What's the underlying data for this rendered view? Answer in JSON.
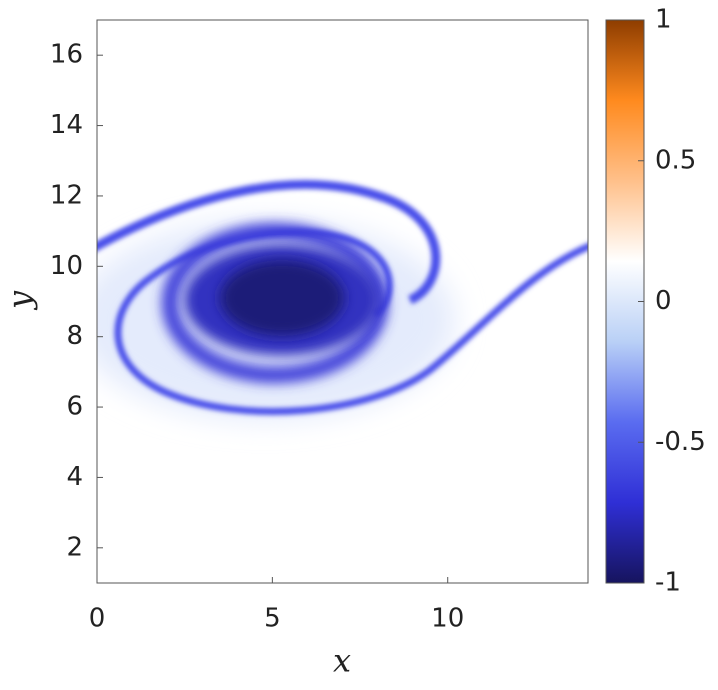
{
  "chart_data": {
    "type": "heatmap",
    "xlabel": "x",
    "ylabel": "y",
    "xlim": [
      0,
      14
    ],
    "ylim": [
      1,
      17
    ],
    "xticks": [
      0,
      5,
      10
    ],
    "yticks": [
      2,
      4,
      6,
      8,
      10,
      12,
      14,
      16
    ],
    "clim": [
      -1,
      1
    ],
    "cticks": [
      -1,
      -0.5,
      0,
      0.5,
      1
    ],
    "colormap": [
      "#16145e",
      "#2f2fd6",
      "#5a6cf0",
      "#b9d0f6",
      "#ffffff",
      "#ffc08a",
      "#ff8a1e",
      "#8e3d00"
    ]
  }
}
